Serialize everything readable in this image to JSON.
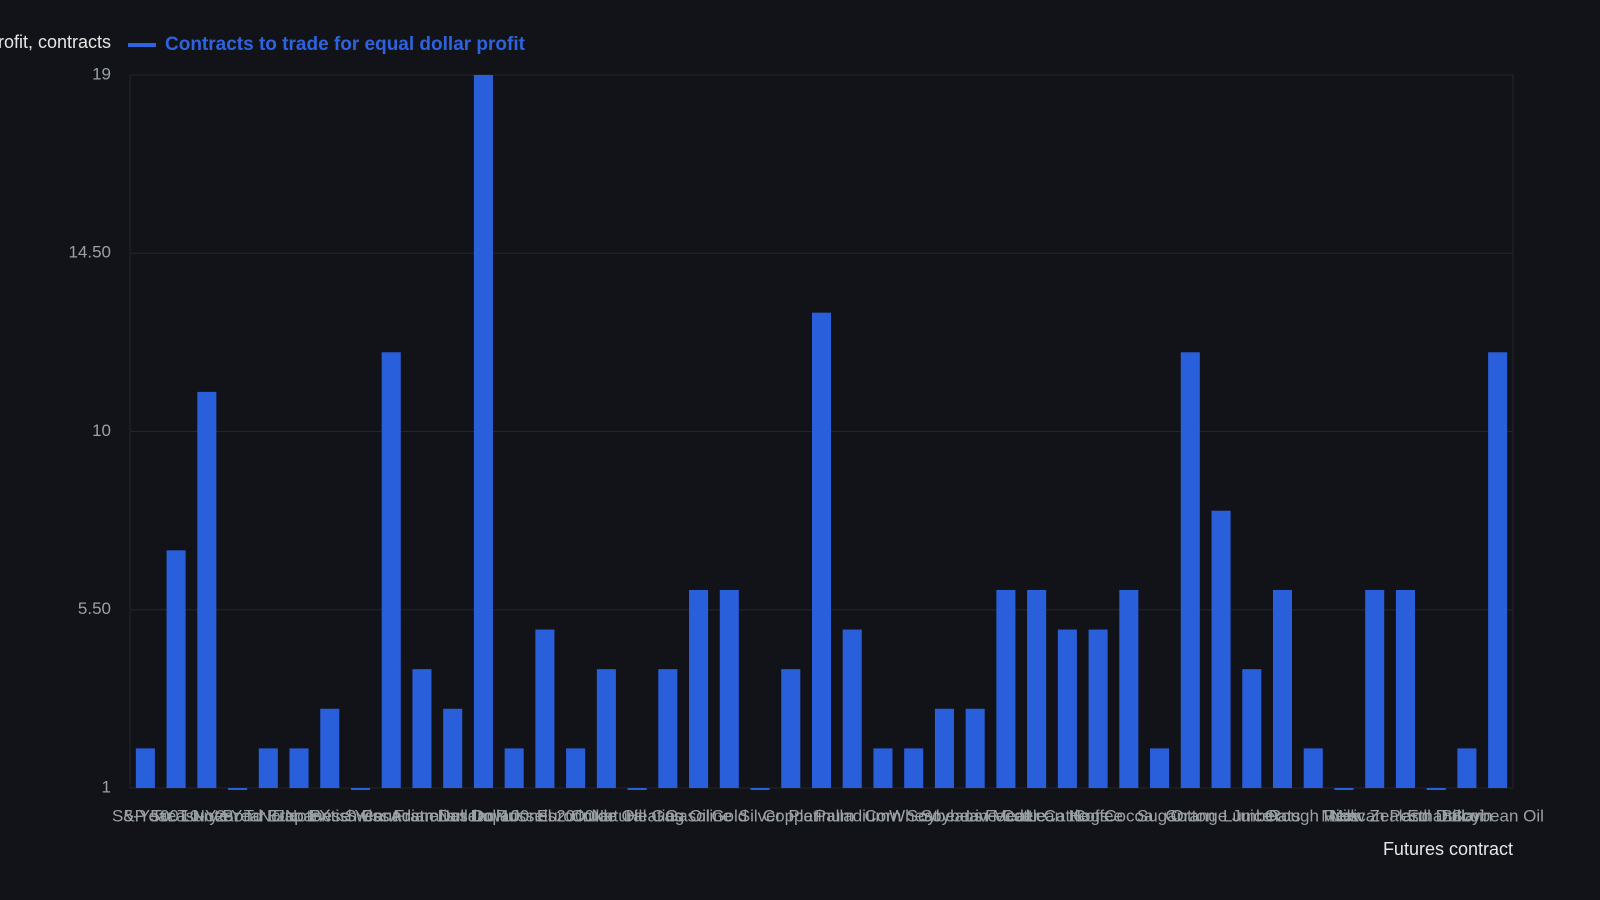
{
  "chart_data": {
    "type": "bar",
    "y_axis_label": "Equal dollar profit, contracts",
    "x_axis_label": "Futures contract",
    "series": [
      {
        "name": "Contracts to trade for equal dollar profit",
        "color": "#2a5fdc",
        "values": [
          2,
          7,
          11,
          1,
          2,
          2,
          3,
          1,
          12,
          4,
          3,
          19,
          2,
          5,
          2,
          4,
          1,
          4,
          6,
          6,
          1,
          4,
          13,
          5,
          2,
          2,
          3,
          3,
          6,
          6,
          5,
          5,
          6,
          2,
          12,
          8,
          4,
          6,
          2,
          1,
          6,
          6,
          1,
          2,
          12
        ]
      }
    ],
    "categories": [
      "S&P 500",
      "5-Year T-Note",
      "Treasury Bond",
      "10-Year T-Note",
      "2-Year T-Note",
      "Euro FX",
      "Japanese Yen",
      "British Pound",
      "Swiss Franc",
      "Canadian Dollar",
      "Australian Dollar",
      "Nasdaq 100",
      "Dow Jones",
      "Russell 2000",
      "Eurodollar",
      "Crude Oil",
      "Natural Gas",
      "Heating Oil",
      "Gasoline",
      "Gold",
      "Silver",
      "Copper",
      "Platinum",
      "Palladium",
      "Corn",
      "Wheat",
      "Soybeans",
      "Soybean Meal",
      "Live Cattle",
      "Feeder Cattle",
      "Lean Hogs",
      "Coffee",
      "Cocoa",
      "Sugar",
      "Cotton",
      "Orange Juice",
      "Lumber",
      "Oats",
      "Rough Rice",
      "Milk",
      "Mexican Peso",
      "New Zealand Dollar",
      "Ethanol",
      "Bitcoin",
      "Soybean Oil"
    ],
    "ylim": [
      1,
      19
    ],
    "yticks": [
      1,
      {
        "value": 5.5,
        "label": "5.50"
      },
      10,
      {
        "value": 14.5,
        "label": "14.50"
      },
      19
    ],
    "grid": true
  }
}
